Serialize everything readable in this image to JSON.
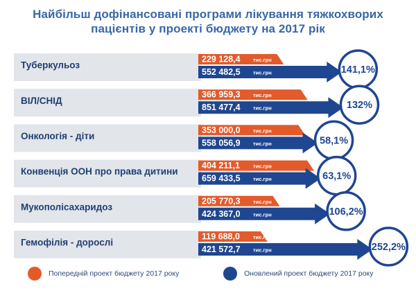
{
  "colors": {
    "previous": "#e35a2b",
    "updated": "#1f4690",
    "category_bg": "#e2e5ea",
    "title": "#3a66a8",
    "category_text": "#1f3f73"
  },
  "chart_data": {
    "type": "bar",
    "title": "Найбільш дофінансовані програми лікування тяжкохворих пацієнтів у проекті бюджету на 2017 рік",
    "title_lines": [
      "Найбільш дофінансовані програми лікування тяжкохворих",
      "пацієнтів у проекті бюджету на 2017 рік"
    ],
    "unit": "тис.грн",
    "categories": [
      "Туберкульоз",
      "ВІЛ/СНІД",
      "Онкологія - діти",
      "Конвенція ООН про права дитини",
      "Мукополісахаридоз",
      "Гемофілія - дорослі"
    ],
    "series": [
      {
        "name": "Попередній проект бюджету 2017 року",
        "values": [
          229128.4,
          366959.3,
          353000.0,
          404211.1,
          205770.3,
          119688.0
        ],
        "labels": [
          "229 128,4",
          "366 959,3",
          "353 000,0",
          "404 211,1",
          "205 770,3",
          "119 688,0"
        ]
      },
      {
        "name": "Оновлений проект бюджету 2017 року",
        "values": [
          552482.5,
          851477.4,
          558056.9,
          659433.5,
          424367.0,
          421572.7
        ],
        "labels": [
          "552 482,5",
          "851 477,4",
          "558 056,9",
          "659 433,5",
          "424 367,0",
          "421 572,7"
        ]
      }
    ],
    "increase_percent": [
      141.1,
      132,
      58.1,
      63.1,
      106.2,
      252.2
    ],
    "increase_labels": [
      "141,1%",
      "132%",
      "58,1%",
      "63,1%",
      "106,2%",
      "252,2%"
    ],
    "legend_placement": "bottom"
  }
}
